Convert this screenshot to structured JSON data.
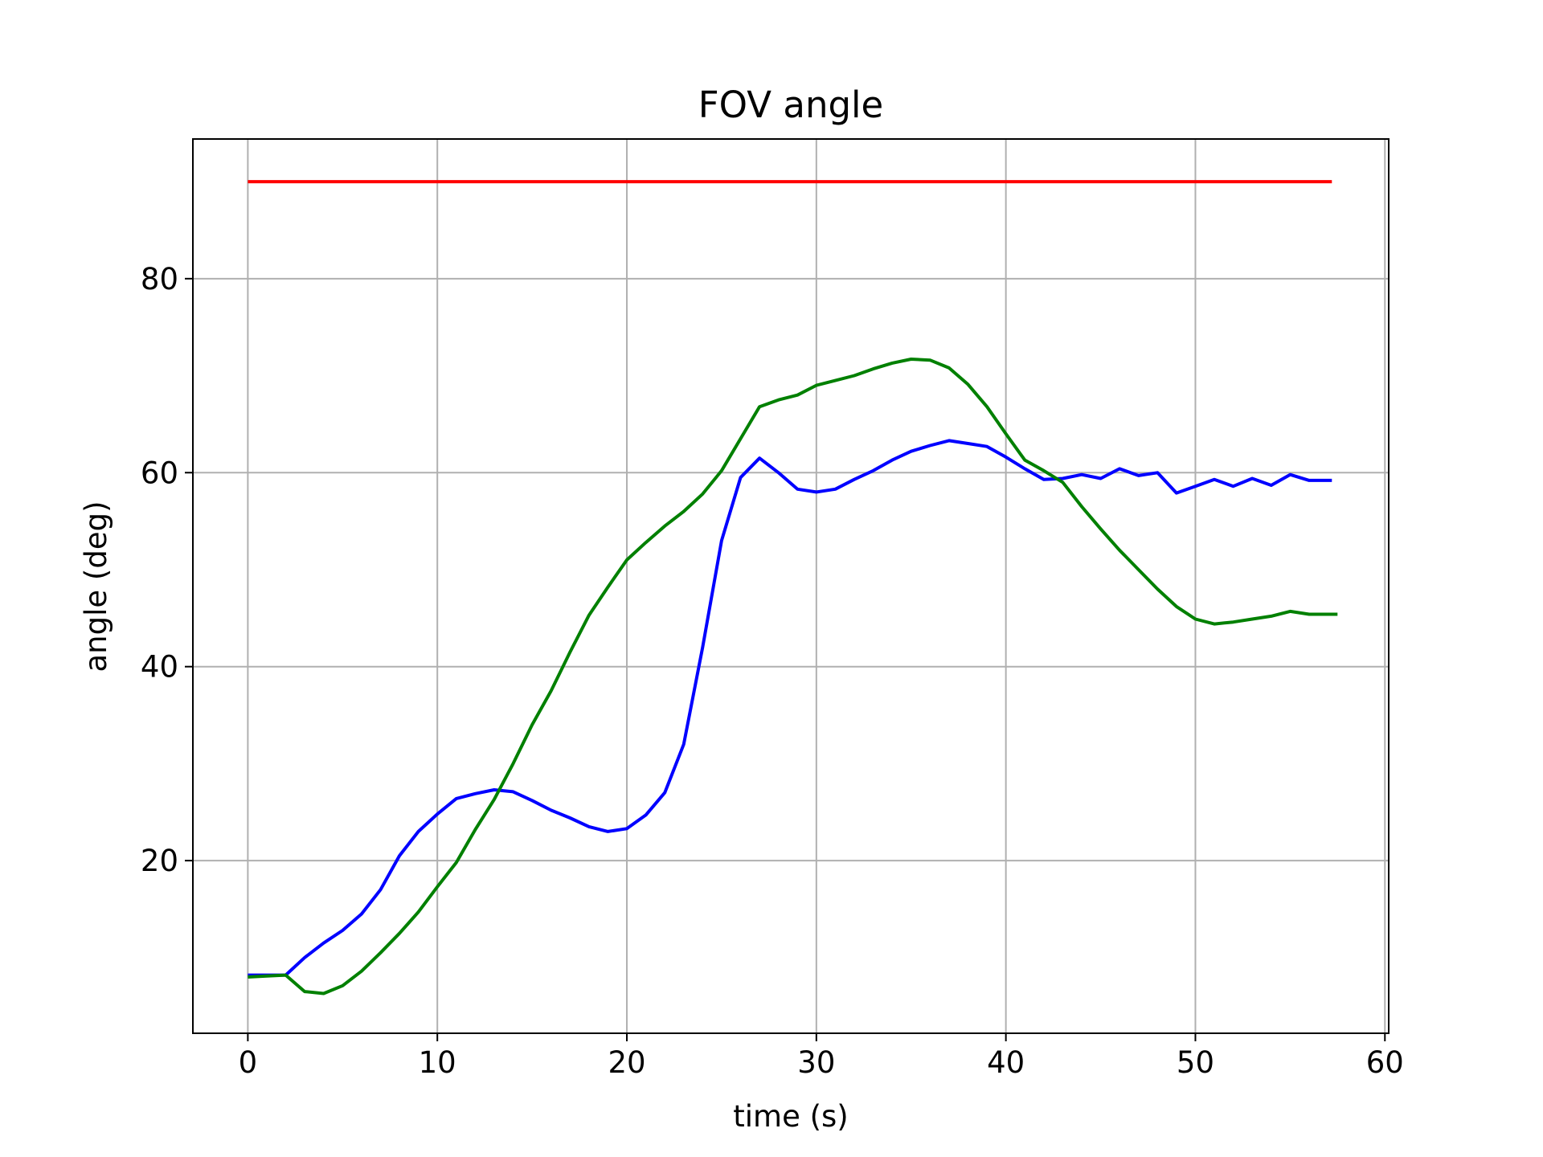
{
  "chart_data": {
    "type": "line",
    "title": "FOV angle",
    "xlabel": "time (s)",
    "ylabel": "angle (deg)",
    "xlim": [
      -2.9,
      60.2
    ],
    "ylim": [
      2.2,
      94.4
    ],
    "xticks": [
      0,
      10,
      20,
      30,
      40,
      50,
      60
    ],
    "yticks": [
      20,
      40,
      60,
      80
    ],
    "grid": true,
    "legend": "none",
    "series": [
      {
        "color": "#ff0000",
        "x": [
          0,
          57.2
        ],
        "y": [
          90,
          90
        ]
      },
      {
        "color": "#0000ff",
        "x": [
          0,
          1,
          2,
          3,
          4,
          5,
          6,
          7,
          8,
          9,
          10,
          11,
          12,
          13,
          14,
          15,
          16,
          17,
          18,
          19,
          20,
          21,
          22,
          23,
          24,
          25,
          26,
          27,
          28,
          29,
          30,
          31,
          32,
          33,
          34,
          35,
          36,
          37,
          38,
          39,
          40,
          41,
          42,
          43,
          44,
          45,
          46,
          47,
          48,
          49,
          50,
          51,
          52,
          53,
          54,
          55,
          56,
          57.2
        ],
        "y": [
          8.2,
          8.2,
          8.2,
          10,
          11.5,
          12.8,
          14.5,
          17,
          20.5,
          23,
          24.8,
          26.4,
          26.9,
          27.3,
          27.1,
          26.2,
          25.2,
          24.4,
          23.5,
          23,
          23.3,
          24.7,
          27,
          32,
          42,
          53,
          59.5,
          61.5,
          60,
          58.3,
          58,
          58.3,
          59.3,
          60.2,
          61.3,
          62.2,
          62.8,
          63.3,
          63,
          62.7,
          61.6,
          60.4,
          59.3,
          59.4,
          59.8,
          59.4,
          60.4,
          59.7,
          60,
          57.9,
          58.6,
          59.3,
          58.6,
          59.4,
          58.7,
          59.8,
          59.2,
          59.2
        ]
      },
      {
        "color": "#008000",
        "x": [
          0,
          1,
          2,
          3,
          4,
          5,
          6,
          7,
          8,
          9,
          10,
          11,
          12,
          13,
          14,
          15,
          16,
          17,
          18,
          19,
          20,
          21,
          22,
          23,
          24,
          25,
          26,
          27,
          28,
          29,
          30,
          31,
          32,
          33,
          34,
          35,
          36,
          37,
          38,
          39,
          40,
          41,
          42,
          43,
          44,
          45,
          46,
          47,
          48,
          49,
          50,
          51,
          52,
          53,
          54,
          55,
          56,
          57.5
        ],
        "y": [
          8,
          8.1,
          8.2,
          6.5,
          6.3,
          7.1,
          8.6,
          10.5,
          12.5,
          14.7,
          17.3,
          19.8,
          23.2,
          26.3,
          30,
          34,
          37.5,
          41.5,
          45.3,
          48.2,
          51,
          52.8,
          54.5,
          56,
          57.8,
          60.2,
          63.5,
          66.8,
          67.5,
          68,
          69,
          69.5,
          70,
          70.7,
          71.3,
          71.7,
          71.6,
          70.8,
          69.1,
          66.8,
          64,
          61.3,
          60.2,
          59,
          56.5,
          54.2,
          52,
          50,
          48,
          46.2,
          44.9,
          44.4,
          44.6,
          44.9,
          45.2,
          45.7,
          45.4,
          45.4
        ]
      }
    ]
  }
}
